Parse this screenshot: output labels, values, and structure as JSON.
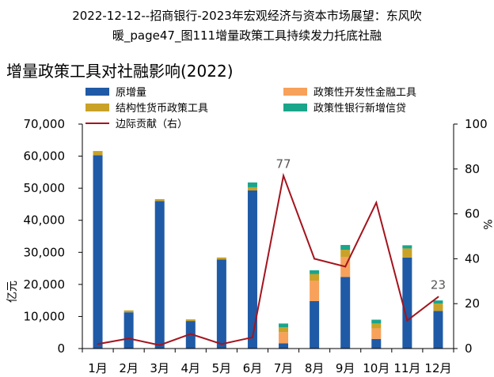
{
  "page": {
    "doc_title_line1": "2022-12-12--招商银行-2023年宏观经济与资本市场展望：东风吹",
    "doc_title_line2": "暖_page47_图111增量政策工具持续发力托底社融"
  },
  "chart_data": {
    "type": "bar",
    "stacked": true,
    "title": "增量政策工具对社融影响(2022)",
    "ylabel": "亿元",
    "y2label": "%",
    "ylim": [
      0,
      70000
    ],
    "yticks": [
      0,
      10000,
      20000,
      30000,
      40000,
      50000,
      60000,
      70000
    ],
    "ytick_labels": [
      "0",
      "10,000",
      "20,000",
      "30,000",
      "40,000",
      "50,000",
      "60,000",
      "70,000"
    ],
    "y2lim": [
      0,
      100
    ],
    "y2ticks": [
      0,
      20,
      40,
      60,
      80,
      100
    ],
    "y2tick_labels": [
      "0",
      "20",
      "40",
      "60",
      "80",
      "100"
    ],
    "categories": [
      "1月",
      "2月",
      "3月",
      "4月",
      "5月",
      "6月",
      "7月",
      "8月",
      "9月",
      "10月",
      "11月",
      "12月"
    ],
    "series": [
      {
        "name": "原增量",
        "color": "#1F5AA6",
        "values": [
          60300,
          11300,
          46000,
          8600,
          27800,
          49300,
          1600,
          14800,
          22300,
          3000,
          28400,
          11700
        ]
      },
      {
        "name": "政策性开发性金融工具",
        "color": "#F7A15B",
        "values": [
          0,
          0,
          0,
          0,
          0,
          0,
          3500,
          6400,
          6300,
          3300,
          0,
          0
        ]
      },
      {
        "name": "结构性货币政策工具",
        "color": "#C9A227",
        "values": [
          1300,
          600,
          600,
          500,
          600,
          1000,
          1500,
          2000,
          2200,
          1500,
          2800,
          2300
        ]
      },
      {
        "name": "政策性银行新增信贷",
        "color": "#1BA58A",
        "values": [
          0,
          0,
          0,
          0,
          0,
          1500,
          1200,
          1200,
          1500,
          1200,
          1000,
          1000
        ]
      }
    ],
    "line": {
      "name": "边际贡献（右）",
      "color": "#A3141E",
      "axis": "right",
      "values": [
        2,
        4.5,
        1.5,
        6.5,
        2,
        5,
        77,
        40,
        36.5,
        65,
        12.5,
        23
      ]
    },
    "annotations": [
      {
        "category": "7月",
        "value": 77,
        "label": "77"
      },
      {
        "category": "12月",
        "value": 23,
        "label": "23"
      }
    ],
    "legend": "top",
    "grid": false
  }
}
